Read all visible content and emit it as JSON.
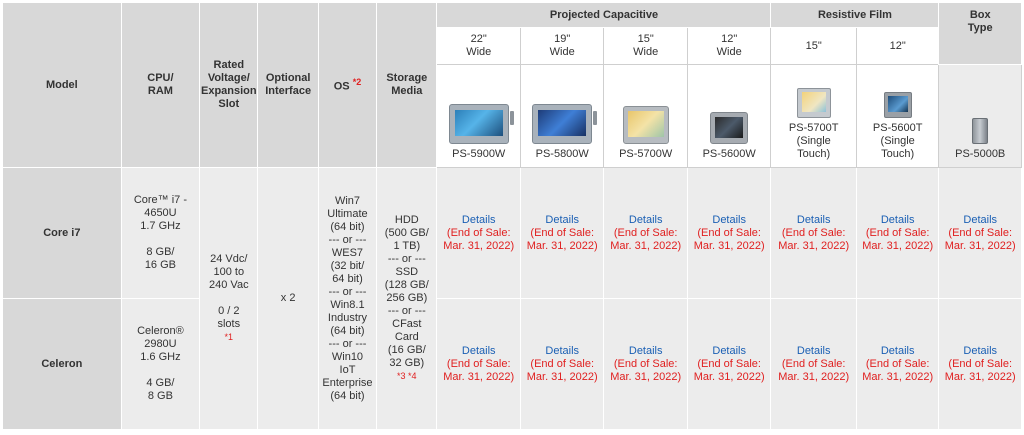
{
  "headers": {
    "model": "Model",
    "cpu_ram": "CPU/\nRAM",
    "rated": "Rated\nVoltage/\nExpansion\nSlot",
    "optional": "Optional\nInterface",
    "os": "OS",
    "os_note": "*2",
    "storage": "Storage\nMedia",
    "projected": "Projected Capacitive",
    "resistive": "Resistive Film",
    "box": "Box\nType"
  },
  "sizes": {
    "pc": [
      "22\"\nWide",
      "19\"\nWide",
      "15\"\nWide",
      "12\"\nWide"
    ],
    "rf": [
      "15\"",
      "12\""
    ]
  },
  "products": [
    {
      "name": "PS-5900W",
      "icon": "panel-computer-22-wide-image"
    },
    {
      "name": "PS-5800W",
      "icon": "panel-computer-19-wide-image"
    },
    {
      "name": "PS-5700W",
      "icon": "panel-computer-15-wide-image"
    },
    {
      "name": "PS-5600W",
      "icon": "panel-computer-12-wide-image"
    },
    {
      "name": "PS-5700T\n(Single\nTouch)",
      "icon": "panel-computer-15-resistive-image"
    },
    {
      "name": "PS-5600T\n(Single\nTouch)",
      "icon": "panel-computer-12-resistive-image"
    },
    {
      "name": "PS-5000B",
      "icon": "box-computer-image"
    }
  ],
  "rows": [
    {
      "model": "Core i7",
      "cpu": "Core™ i7 -\n4650U\n1.7 GHz\n\n8 GB/\n16 GB"
    },
    {
      "model": "Celeron",
      "cpu": "Celeron®\n2980U\n1.6 GHz\n\n4 GB/\n8 GB"
    }
  ],
  "shared": {
    "rated": "24 Vdc/\n100 to\n240 Vac\n\n0 / 2\nslots",
    "rated_note": "*1",
    "optional": "x 2",
    "os": "Win7\nUltimate\n(64 bit)\n--- or ---\nWES7\n(32 bit/\n64 bit)\n--- or ---\nWin8.1\nIndustry\n(64 bit)\n--- or ---\nWin10\nIoT\nEnterprise\n(64 bit)",
    "storage": "HDD\n(500 GB/\n1 TB)\n--- or ---\nSSD\n(128 GB/\n256 GB)\n--- or ---\nCFast\nCard\n(16 GB/\n32 GB)",
    "storage_note": "*3 *4"
  },
  "details": {
    "link": "Details",
    "eos": "(End of Sale:\nMar. 31, 2022)"
  },
  "colors": {
    "header_bg": "#d8d8d8",
    "cell_bg": "#ececec",
    "link": "#1a5fb4",
    "note": "#e02020"
  }
}
